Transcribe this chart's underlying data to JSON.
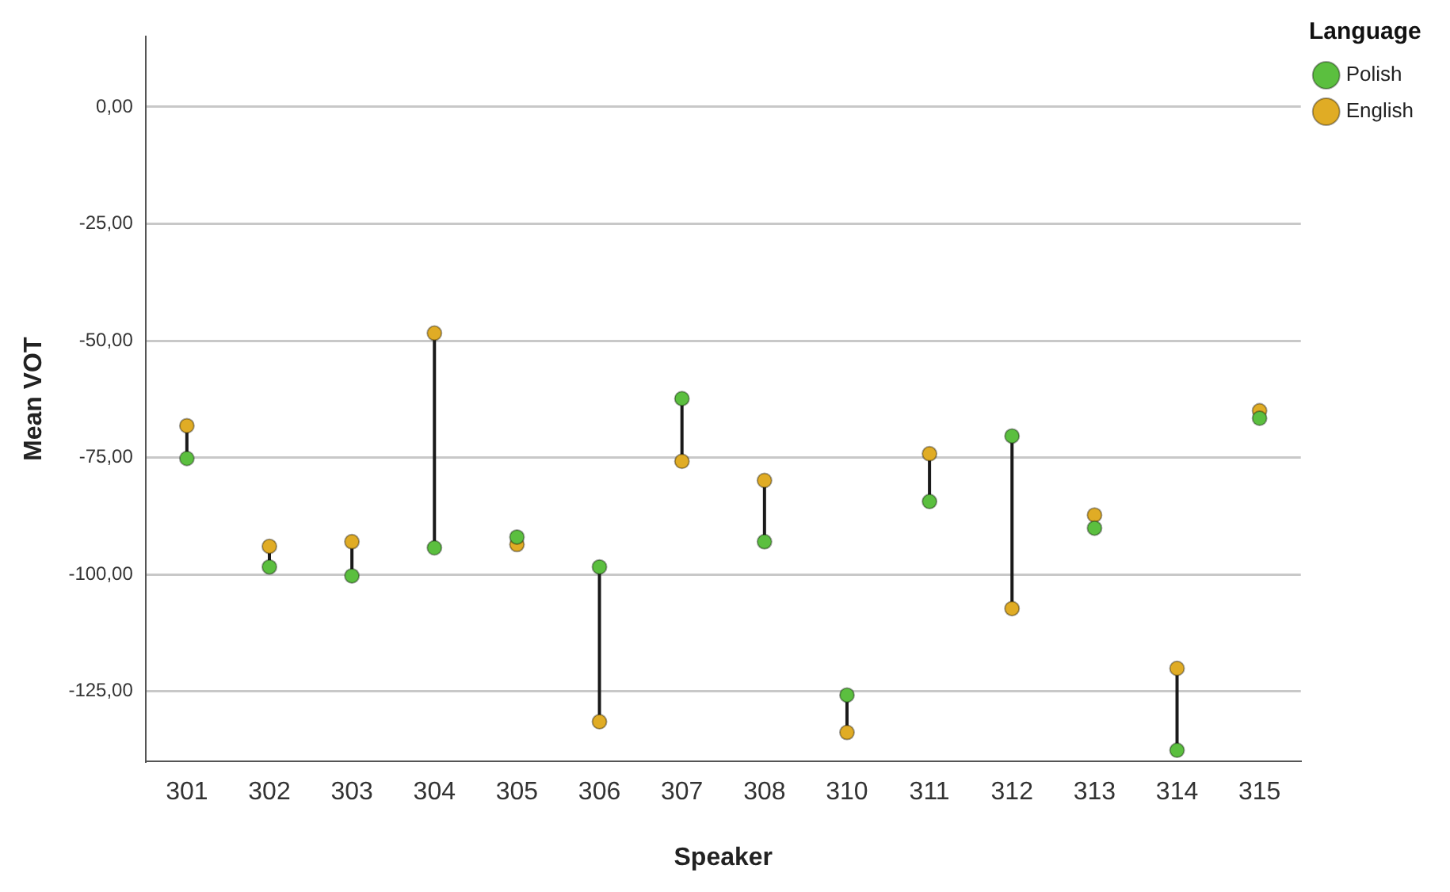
{
  "chart_data": {
    "type": "scatter",
    "xlabel": "Speaker",
    "ylabel": "Mean VOT",
    "legend_title": "Language",
    "legend": "top right",
    "grid": "y",
    "marker": "circle",
    "categories": [
      "301",
      "302",
      "303",
      "304",
      "305",
      "306",
      "307",
      "308",
      "310",
      "311",
      "312",
      "313",
      "314",
      "315"
    ],
    "ylim": [
      -140,
      15
    ],
    "yticks": [
      {
        "value": 0,
        "label": "0,00"
      },
      {
        "value": -25,
        "label": "-25,00"
      },
      {
        "value": -50,
        "label": "-50,00"
      },
      {
        "value": -75,
        "label": "-75,00"
      },
      {
        "value": -100,
        "label": "-100,00"
      },
      {
        "value": -125,
        "label": "-125,00"
      }
    ],
    "series": [
      {
        "name": "Polish",
        "color": "#5bbf3f",
        "values": [
          -75.2,
          -98.4,
          -100.3,
          -94.3,
          -92,
          -98.4,
          -62.4,
          -93,
          -125.8,
          -84.4,
          -70.4,
          -90.1,
          -137.6,
          -66.6
        ]
      },
      {
        "name": "English",
        "color": "#e0ac25",
        "values": [
          -68.2,
          -94,
          -93,
          -48.4,
          -93.6,
          -131.5,
          -75.8,
          -79.9,
          -133.8,
          -74.2,
          -107.3,
          -87.3,
          -120.1,
          -65
        ]
      }
    ]
  }
}
